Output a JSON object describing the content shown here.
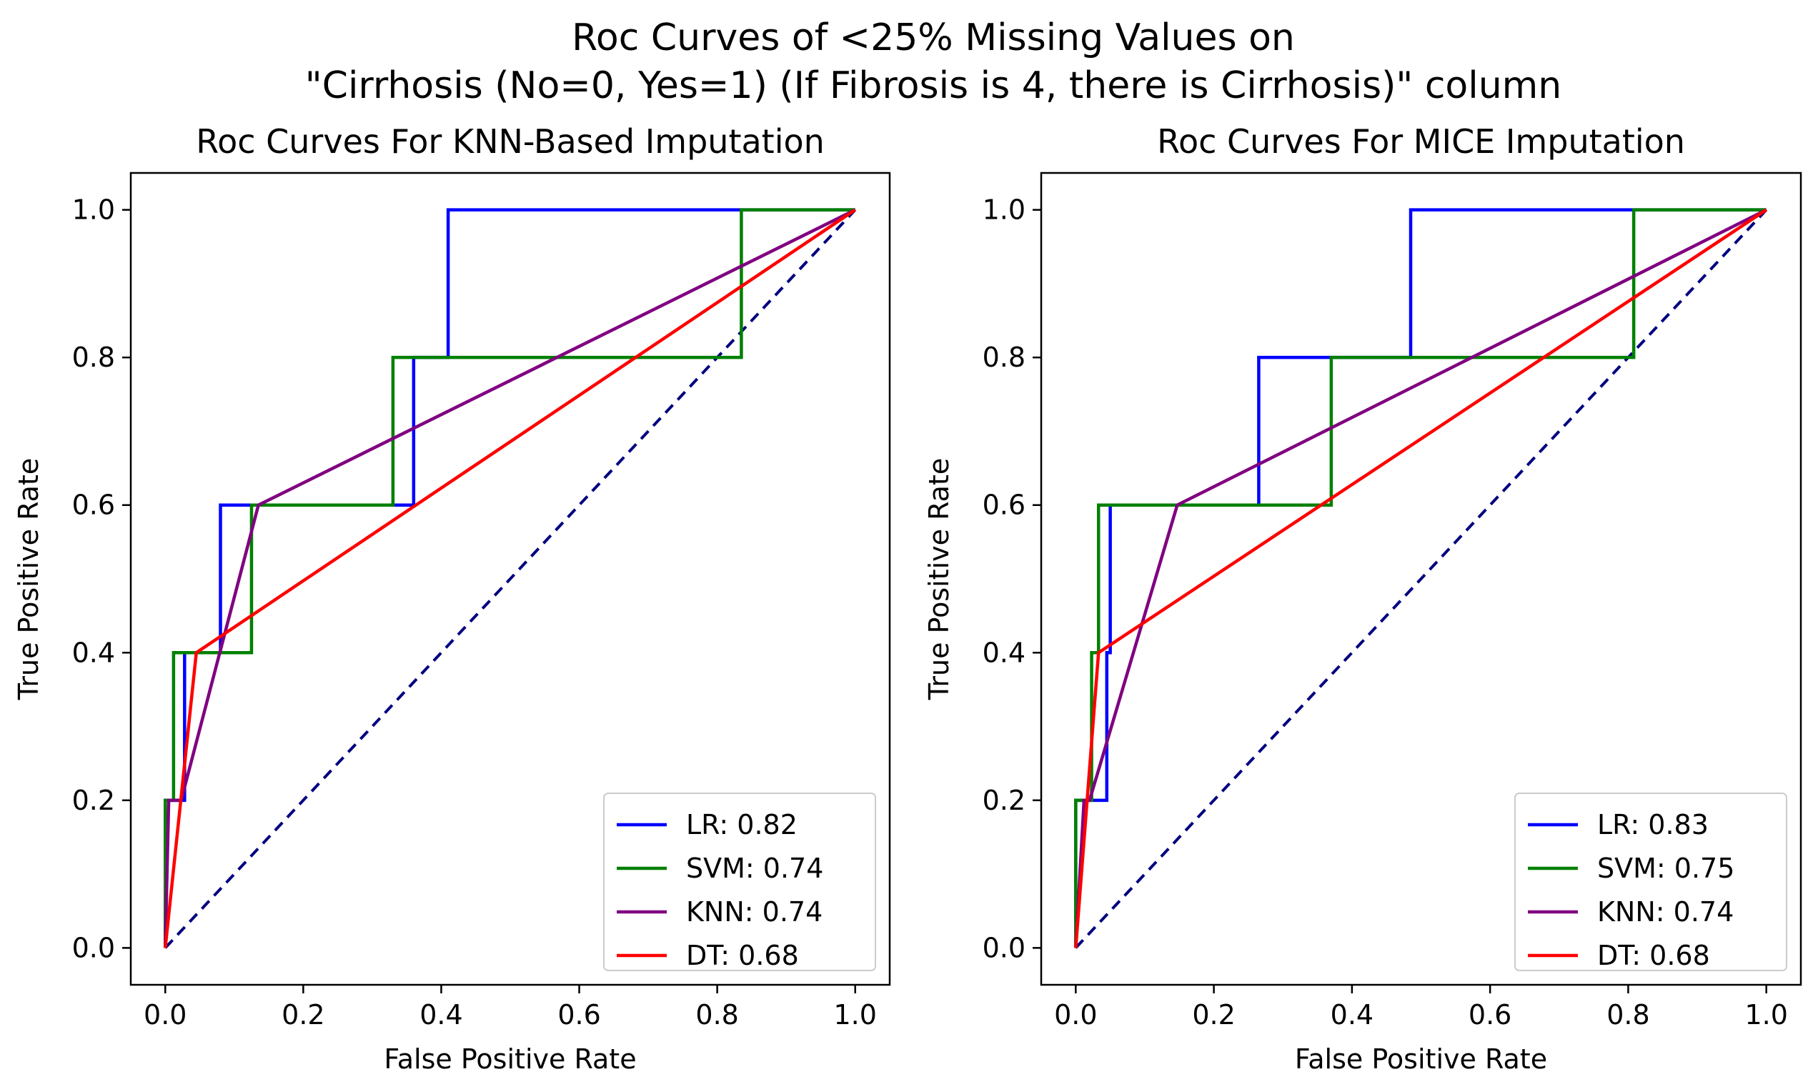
{
  "figure": {
    "title_line1": "Roc Curves of <25% Missing Values on",
    "title_line2": "\"Cirrhosis (No=0, Yes=1) (If Fibrosis is 4, there is Cirrhosis)\" column"
  },
  "colors": {
    "LR": "#0000ff",
    "SVM": "#008000",
    "KNN": "#800080",
    "DT": "#ff0000",
    "diagonal": "#000080"
  },
  "chart_data": [
    {
      "type": "line",
      "title": "Roc Curves For KNN-Based Imputation",
      "xlabel": "False Positive Rate",
      "ylabel": "True Positive Rate",
      "xlim": [
        -0.05,
        1.05
      ],
      "ylim": [
        -0.05,
        1.05
      ],
      "xticks": [
        "0.0",
        "0.2",
        "0.4",
        "0.6",
        "0.8",
        "1.0"
      ],
      "yticks": [
        "0.0",
        "0.2",
        "0.4",
        "0.6",
        "0.8",
        "1.0"
      ],
      "grid": false,
      "legend_position": "lower-right",
      "series": [
        {
          "name": "LR: 0.82",
          "key": "LR",
          "x": [
            0,
            0,
            0.028,
            0.028,
            0.08,
            0.08,
            0.35,
            0.35,
            0.36,
            0.36,
            0.41,
            0.41,
            1.0
          ],
          "y": [
            0,
            0.2,
            0.2,
            0.4,
            0.4,
            0.6,
            0.6,
            0.6,
            0.6,
            0.8,
            0.8,
            1.0,
            1.0
          ]
        },
        {
          "name": "SVM: 0.74",
          "key": "SVM",
          "x": [
            0,
            0,
            0.012,
            0.012,
            0.125,
            0.125,
            0.33,
            0.33,
            0.835,
            0.835,
            1.0
          ],
          "y": [
            0,
            0.2,
            0.2,
            0.4,
            0.4,
            0.6,
            0.6,
            0.8,
            0.8,
            1.0,
            1.0
          ]
        },
        {
          "name": "KNN: 0.74",
          "key": "KNN",
          "x": [
            0,
            0.005,
            0.023,
            0.135,
            1.0
          ],
          "y": [
            0,
            0.2,
            0.2,
            0.6,
            1.0
          ]
        },
        {
          "name": "DT: 0.68",
          "key": "DT",
          "x": [
            0,
            0.045,
            1.0
          ],
          "y": [
            0,
            0.4,
            1.0
          ]
        }
      ],
      "diagonal": {
        "x": [
          0,
          1
        ],
        "y": [
          0,
          1
        ],
        "style": "dashed"
      }
    },
    {
      "type": "line",
      "title": "Roc Curves For MICE Imputation",
      "xlabel": "False Positive Rate",
      "ylabel": "True Positive Rate",
      "xlim": [
        -0.05,
        1.05
      ],
      "ylim": [
        -0.05,
        1.05
      ],
      "xticks": [
        "0.0",
        "0.2",
        "0.4",
        "0.6",
        "0.8",
        "1.0"
      ],
      "yticks": [
        "0.0",
        "0.2",
        "0.4",
        "0.6",
        "0.8",
        "1.0"
      ],
      "grid": false,
      "legend_position": "lower-right",
      "series": [
        {
          "name": "LR: 0.83",
          "key": "LR",
          "x": [
            0,
            0,
            0.045,
            0.045,
            0.05,
            0.05,
            0.265,
            0.265,
            0.485,
            0.485,
            1.0
          ],
          "y": [
            0,
            0.2,
            0.2,
            0.4,
            0.4,
            0.6,
            0.6,
            0.8,
            0.8,
            1.0,
            1.0
          ]
        },
        {
          "name": "SVM: 0.75",
          "key": "SVM",
          "x": [
            0,
            0,
            0.023,
            0.023,
            0.033,
            0.033,
            0.37,
            0.37,
            0.808,
            0.808,
            1.0
          ],
          "y": [
            0,
            0.2,
            0.2,
            0.4,
            0.4,
            0.6,
            0.6,
            0.8,
            0.8,
            1.0,
            1.0
          ]
        },
        {
          "name": "KNN: 0.74",
          "key": "KNN",
          "x": [
            0,
            0.012,
            0.02,
            0.147,
            1.0
          ],
          "y": [
            0,
            0.2,
            0.2,
            0.6,
            1.0
          ]
        },
        {
          "name": "DT: 0.68",
          "key": "DT",
          "x": [
            0,
            0.033,
            1.0
          ],
          "y": [
            0,
            0.4,
            1.0
          ]
        }
      ],
      "diagonal": {
        "x": [
          0,
          1
        ],
        "y": [
          0,
          1
        ],
        "style": "dashed"
      }
    }
  ]
}
